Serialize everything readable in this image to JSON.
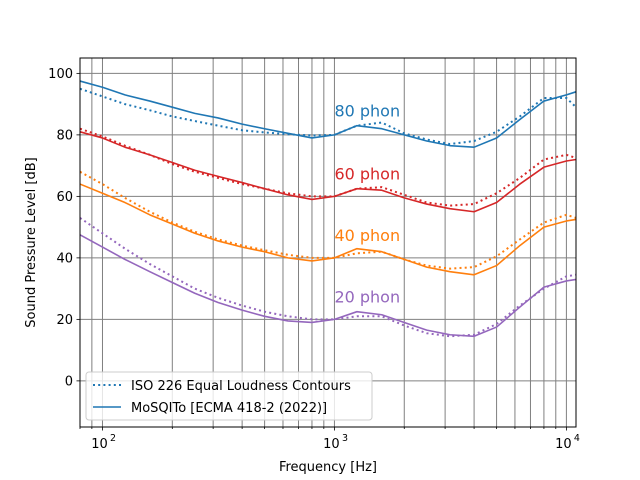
{
  "chart_data": {
    "type": "line",
    "title": "",
    "xlabel": "Frequency [Hz]",
    "ylabel": "Sound Pressure Level [dB]",
    "xscale": "log",
    "xlim": [
      80,
      11000
    ],
    "ylim": [
      -15,
      105
    ],
    "yticks": [
      0,
      20,
      40,
      60,
      80,
      100
    ],
    "xticks": [
      {
        "value": 100,
        "label": "10",
        "exp": "2"
      },
      {
        "value": 1000,
        "label": "10",
        "exp": "3"
      },
      {
        "value": 10000,
        "label": "10",
        "exp": "4"
      }
    ],
    "grid": "both-major-minor",
    "legend": {
      "placement": "lower-left",
      "entries": [
        {
          "label": "ISO 226 Equal Loudness Contours",
          "style": "dotted",
          "color": "#1f77b4"
        },
        {
          "label": "MoSQITo [ECMA 418-2 (2022)]",
          "style": "solid",
          "color": "#1f77b4"
        }
      ]
    },
    "curve_labels": [
      {
        "text": "80 phon",
        "color": "#1f77b4",
        "x": 1000,
        "y": 86
      },
      {
        "text": "60 phon",
        "color": "#d62728",
        "x": 1000,
        "y": 65.5
      },
      {
        "text": "40 phon",
        "color": "#ff7f0e",
        "x": 1000,
        "y": 45.5
      },
      {
        "text": "20 phon",
        "color": "#9467bd",
        "x": 1000,
        "y": 25.5
      }
    ],
    "series": [
      {
        "name": "ISO 226 Equal Loudness Contours",
        "group": "80 phon",
        "color": "#1f77b4",
        "style": "dotted",
        "points": [
          [
            80,
            95
          ],
          [
            100,
            92.5
          ],
          [
            125,
            90
          ],
          [
            160,
            88
          ],
          [
            200,
            86
          ],
          [
            250,
            84.5
          ],
          [
            315,
            83
          ],
          [
            400,
            81.5
          ],
          [
            500,
            80.8
          ],
          [
            630,
            80.2
          ],
          [
            800,
            79.8
          ],
          [
            1000,
            80
          ],
          [
            1250,
            83
          ],
          [
            1600,
            84
          ],
          [
            2000,
            80.5
          ],
          [
            2500,
            78.5
          ],
          [
            3150,
            77
          ],
          [
            4000,
            78
          ],
          [
            5000,
            81
          ],
          [
            6300,
            86
          ],
          [
            8000,
            92
          ],
          [
            10000,
            92
          ],
          [
            11000,
            89
          ]
        ]
      },
      {
        "name": "MoSQITo [ECMA 418-2 (2022)]",
        "group": "80 phon",
        "color": "#1f77b4",
        "style": "solid",
        "points": [
          [
            80,
            97.5
          ],
          [
            100,
            95.5
          ],
          [
            125,
            93
          ],
          [
            160,
            91
          ],
          [
            200,
            89
          ],
          [
            250,
            87
          ],
          [
            315,
            85.5
          ],
          [
            400,
            83.5
          ],
          [
            500,
            82
          ],
          [
            630,
            80.5
          ],
          [
            800,
            79
          ],
          [
            1000,
            80
          ],
          [
            1250,
            83
          ],
          [
            1600,
            82
          ],
          [
            2000,
            80
          ],
          [
            2500,
            78
          ],
          [
            3150,
            76.5
          ],
          [
            4000,
            76
          ],
          [
            5000,
            79
          ],
          [
            6300,
            85
          ],
          [
            8000,
            91
          ],
          [
            10000,
            93
          ],
          [
            11000,
            94
          ]
        ]
      },
      {
        "name": "ISO 226 Equal Loudness Contours",
        "group": "60 phon",
        "color": "#d62728",
        "style": "dotted",
        "points": [
          [
            80,
            82
          ],
          [
            100,
            79.5
          ],
          [
            125,
            76.5
          ],
          [
            160,
            73.5
          ],
          [
            200,
            70.5
          ],
          [
            250,
            68
          ],
          [
            315,
            66
          ],
          [
            400,
            64
          ],
          [
            500,
            62.5
          ],
          [
            630,
            61
          ],
          [
            800,
            60
          ],
          [
            1000,
            60
          ],
          [
            1250,
            62.5
          ],
          [
            1600,
            63
          ],
          [
            2000,
            60.5
          ],
          [
            2500,
            58
          ],
          [
            3150,
            57
          ],
          [
            4000,
            57.5
          ],
          [
            5000,
            61
          ],
          [
            6300,
            66
          ],
          [
            8000,
            72
          ],
          [
            10000,
            73.5
          ],
          [
            11000,
            72.5
          ]
        ]
      },
      {
        "name": "MoSQITo [ECMA 418-2 (2022)]",
        "group": "60 phon",
        "color": "#d62728",
        "style": "solid",
        "points": [
          [
            80,
            81
          ],
          [
            100,
            79
          ],
          [
            125,
            76
          ],
          [
            160,
            73.5
          ],
          [
            200,
            71
          ],
          [
            250,
            68.5
          ],
          [
            315,
            66.5
          ],
          [
            400,
            64.5
          ],
          [
            500,
            62.5
          ],
          [
            630,
            60.5
          ],
          [
            800,
            59
          ],
          [
            1000,
            60
          ],
          [
            1250,
            62.5
          ],
          [
            1600,
            62
          ],
          [
            2000,
            59.5
          ],
          [
            2500,
            57.5
          ],
          [
            3150,
            56
          ],
          [
            4000,
            55
          ],
          [
            5000,
            58
          ],
          [
            6300,
            64
          ],
          [
            8000,
            69.5
          ],
          [
            10000,
            71.5
          ],
          [
            11000,
            72
          ]
        ]
      },
      {
        "name": "ISO 226 Equal Loudness Contours",
        "group": "40 phon",
        "color": "#ff7f0e",
        "style": "dotted",
        "points": [
          [
            80,
            68
          ],
          [
            100,
            64
          ],
          [
            125,
            59.5
          ],
          [
            160,
            55
          ],
          [
            200,
            51.5
          ],
          [
            250,
            48.5
          ],
          [
            315,
            46
          ],
          [
            400,
            44
          ],
          [
            500,
            42.5
          ],
          [
            630,
            41
          ],
          [
            800,
            40
          ],
          [
            1000,
            40
          ],
          [
            1250,
            41.5
          ],
          [
            1600,
            42
          ],
          [
            2000,
            39.5
          ],
          [
            2500,
            37.5
          ],
          [
            3150,
            36.5
          ],
          [
            4000,
            37
          ],
          [
            5000,
            40.5
          ],
          [
            6300,
            46
          ],
          [
            8000,
            51.5
          ],
          [
            10000,
            54
          ],
          [
            11000,
            53
          ]
        ]
      },
      {
        "name": "MoSQITo [ECMA 418-2 (2022)]",
        "group": "40 phon",
        "color": "#ff7f0e",
        "style": "solid",
        "points": [
          [
            80,
            64
          ],
          [
            100,
            61
          ],
          [
            125,
            58
          ],
          [
            160,
            54
          ],
          [
            200,
            51
          ],
          [
            250,
            48
          ],
          [
            315,
            45.5
          ],
          [
            400,
            43.5
          ],
          [
            500,
            42
          ],
          [
            630,
            40
          ],
          [
            800,
            39
          ],
          [
            1000,
            40
          ],
          [
            1250,
            43
          ],
          [
            1600,
            42
          ],
          [
            2000,
            39.5
          ],
          [
            2500,
            37
          ],
          [
            3150,
            35.5
          ],
          [
            4000,
            34.5
          ],
          [
            5000,
            37.5
          ],
          [
            6300,
            44
          ],
          [
            8000,
            50
          ],
          [
            10000,
            52
          ],
          [
            11000,
            52.5
          ]
        ]
      },
      {
        "name": "ISO 226 Equal Loudness Contours",
        "group": "20 phon",
        "color": "#9467bd",
        "style": "dotted",
        "points": [
          [
            80,
            53
          ],
          [
            100,
            48
          ],
          [
            125,
            43
          ],
          [
            160,
            38
          ],
          [
            200,
            34
          ],
          [
            250,
            30
          ],
          [
            315,
            27
          ],
          [
            400,
            24.5
          ],
          [
            500,
            22.5
          ],
          [
            630,
            21
          ],
          [
            800,
            20
          ],
          [
            1000,
            20
          ],
          [
            1250,
            21
          ],
          [
            1600,
            21
          ],
          [
            2000,
            18
          ],
          [
            2500,
            15.5
          ],
          [
            3150,
            14.5
          ],
          [
            4000,
            15
          ],
          [
            5000,
            18.5
          ],
          [
            6300,
            24.5
          ],
          [
            8000,
            30
          ],
          [
            10000,
            34
          ],
          [
            11000,
            34.5
          ]
        ]
      },
      {
        "name": "MoSQITo [ECMA 418-2 (2022)]",
        "group": "20 phon",
        "color": "#9467bd",
        "style": "solid",
        "points": [
          [
            80,
            47.5
          ],
          [
            100,
            43.5
          ],
          [
            125,
            39.5
          ],
          [
            160,
            35.5
          ],
          [
            200,
            32
          ],
          [
            250,
            28.5
          ],
          [
            315,
            25.5
          ],
          [
            400,
            23
          ],
          [
            500,
            21
          ],
          [
            630,
            19.5
          ],
          [
            800,
            19
          ],
          [
            1000,
            20
          ],
          [
            1250,
            22.5
          ],
          [
            1600,
            21.5
          ],
          [
            2000,
            19
          ],
          [
            2500,
            16.5
          ],
          [
            3150,
            15
          ],
          [
            4000,
            14.5
          ],
          [
            5000,
            17.5
          ],
          [
            6300,
            24
          ],
          [
            8000,
            30.5
          ],
          [
            10000,
            32.5
          ],
          [
            11000,
            33
          ]
        ]
      }
    ]
  }
}
